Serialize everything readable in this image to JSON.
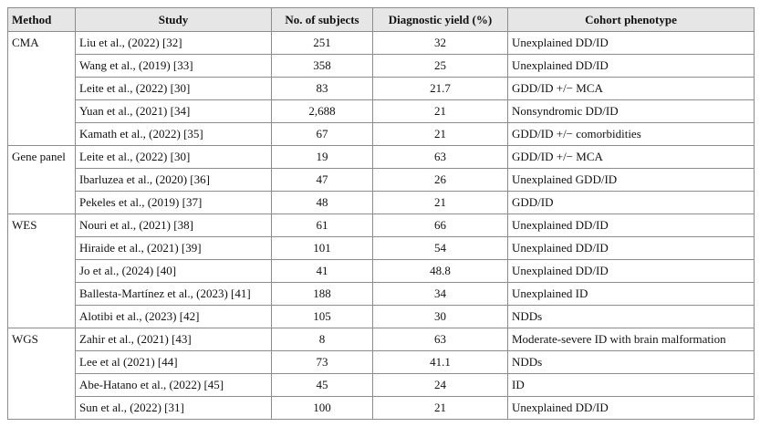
{
  "table": {
    "columns": [
      "Method",
      "Study",
      "No. of subjects",
      "Diagnostic yield (%)",
      "Cohort phenotype"
    ],
    "groups": [
      {
        "method": "CMA",
        "rows": [
          [
            "Liu et al., (2022) [32]",
            "251",
            "32",
            "Unexplained DD/ID"
          ],
          [
            "Wang et al., (2019) [33]",
            "358",
            "25",
            "Unexplained DD/ID"
          ],
          [
            "Leite et al., (2022) [30]",
            "83",
            "21.7",
            "GDD/ID +/− MCA"
          ],
          [
            "Yuan et al., (2021) [34]",
            "2,688",
            "21",
            "Nonsyndromic DD/ID"
          ],
          [
            "Kamath et al., (2022) [35]",
            "67",
            "21",
            "GDD/ID +/− comorbidities"
          ]
        ]
      },
      {
        "method": "Gene panel",
        "rows": [
          [
            "Leite et al., (2022) [30]",
            "19",
            "63",
            "GDD/ID +/− MCA"
          ],
          [
            "Ibarluzea et al., (2020) [36]",
            "47",
            "26",
            "Unexplained GDD/ID"
          ],
          [
            "Pekeles et al., (2019) [37]",
            "48",
            "21",
            "GDD/ID"
          ]
        ]
      },
      {
        "method": "WES",
        "rows": [
          [
            "Nouri et al., (2021) [38]",
            "61",
            "66",
            "Unexplained DD/ID"
          ],
          [
            "Hiraide et al., (2021) [39]",
            "101",
            "54",
            "Unexplained DD/ID"
          ],
          [
            "Jo et al., (2024) [40]",
            "41",
            "48.8",
            "Unexplained DD/ID"
          ],
          [
            "Ballesta-Martínez et al., (2023) [41]",
            "188",
            "34",
            "Unexplained ID"
          ],
          [
            "Alotibi et al., (2023) [42]",
            "105",
            "30",
            "NDDs"
          ]
        ]
      },
      {
        "method": "WGS",
        "rows": [
          [
            "Zahir et al., (2021) [43]",
            "8",
            "63",
            "Moderate-severe ID with brain malformation"
          ],
          [
            "Lee et al (2021) [44]",
            "73",
            "41.1",
            "NDDs"
          ],
          [
            "Abe-Hatano et al., (2022) [45]",
            "45",
            "24",
            "ID"
          ],
          [
            "Sun et al., (2022) [31]",
            "100",
            "21",
            "Unexplained DD/ID"
          ]
        ]
      }
    ]
  }
}
